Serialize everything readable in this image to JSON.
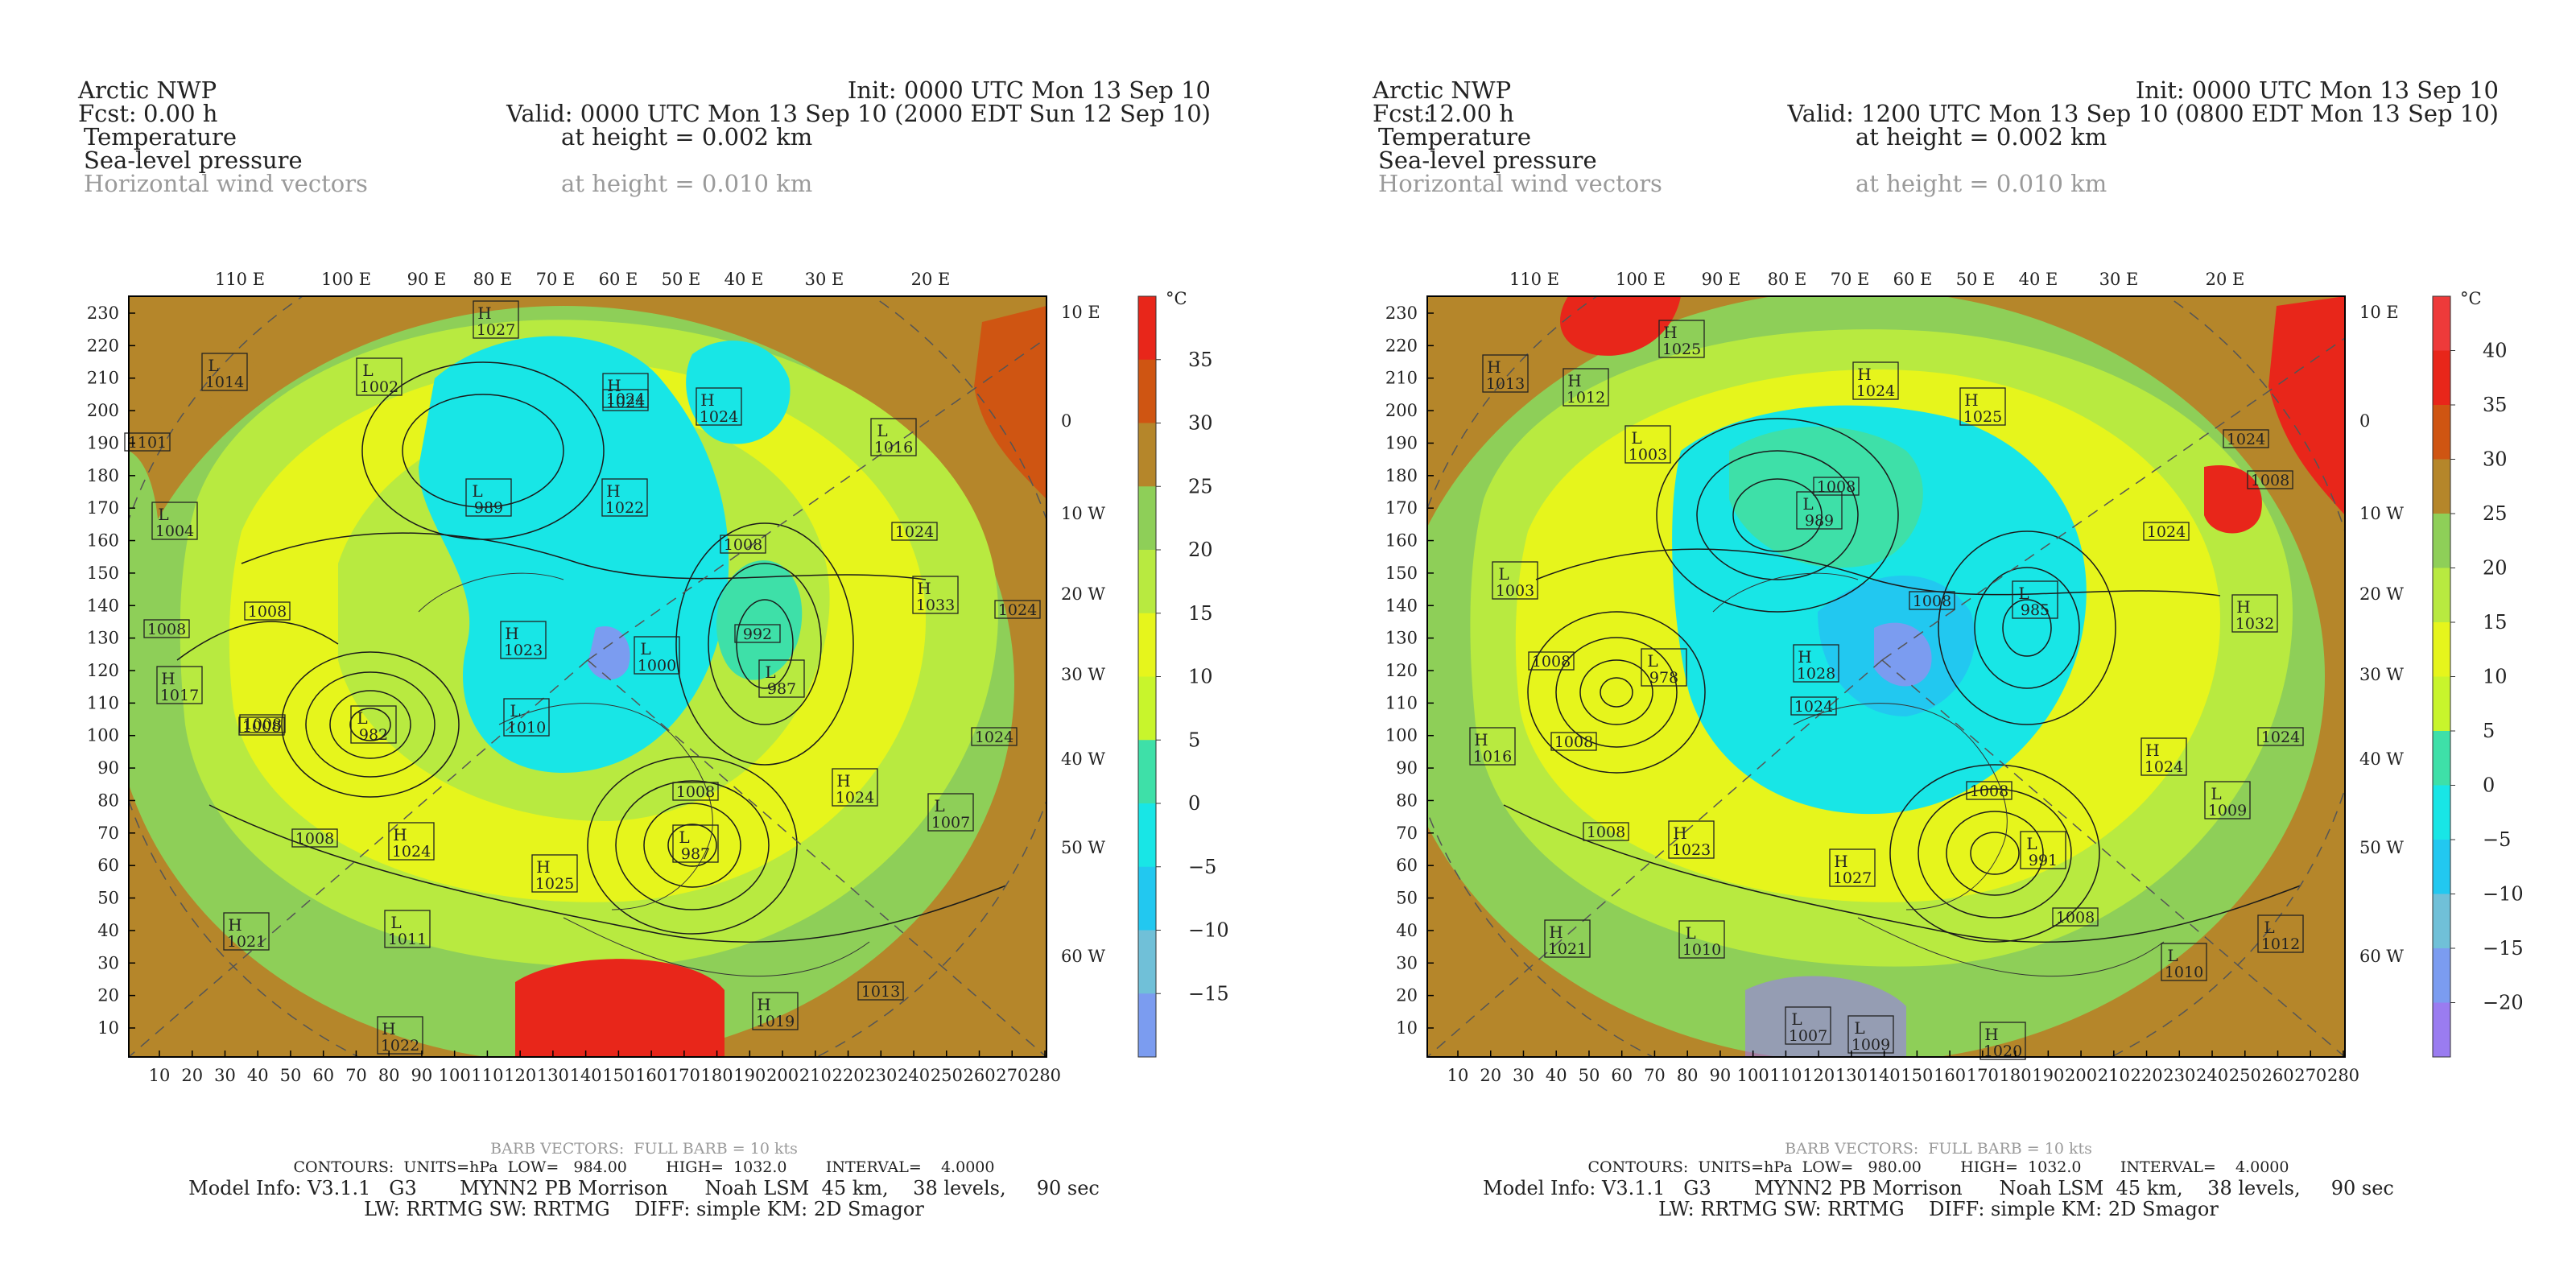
{
  "panels": [
    {
      "title": "Arctic NWP",
      "init": "Init: 0000 UTC Mon 13 Sep 10",
      "fcst_label": "Fcst:",
      "fcst_value": "0.00 h",
      "valid": "Valid: 0000 UTC Mon 13 Sep 10 (2000 EDT Sun 12 Sep 10)",
      "field1": "Temperature",
      "field1_height": "at height = 0.002 km",
      "field2": "Sea-level pressure",
      "field3": "Horizontal wind vectors",
      "field3_height": "at height = 0.010 km",
      "top_labels": [
        "110 E",
        "100 E",
        "90 E",
        "80 E",
        "70 E",
        "60 E",
        "50 E",
        "40 E",
        "30 E",
        "20 E"
      ],
      "right_labels": [
        "10 E",
        "0",
        "10 W",
        "20 W",
        "30 W",
        "40 W",
        "50 W",
        "60 W"
      ],
      "y_ticks": [
        "230",
        "220",
        "210",
        "200",
        "190",
        "180",
        "170",
        "160",
        "150",
        "140",
        "130",
        "120",
        "110",
        "100",
        "90",
        "80",
        "70",
        "60",
        "50",
        "40",
        "30",
        "20",
        "10"
      ],
      "x_ticks": [
        "10",
        "20",
        "30",
        "40",
        "50",
        "60",
        "70",
        "80",
        "90",
        "100",
        "110",
        "120",
        "130",
        "140",
        "150",
        "160",
        "170",
        "180",
        "190",
        "200",
        "210",
        "220",
        "230",
        "240",
        "250",
        "260",
        "270",
        "280"
      ],
      "colorbar_unit": "°C",
      "colorbar_labels": [
        "35",
        "30",
        "25",
        "20",
        "15",
        "10",
        "5",
        "0",
        "−5",
        "−10",
        "−15"
      ],
      "colorbar_colors": [
        "#e8261a",
        "#cf5512",
        "#b5862a",
        "#8ecf58",
        "#b8ea40",
        "#e6f51c",
        "#c8f52c",
        "#3ee0a8",
        "#18e6e6",
        "#22c8f0",
        "#70c0d8",
        "#7b9cf0"
      ],
      "pressure_centers": [
        {
          "t": "L",
          "v": "1014"
        },
        {
          "t": "H",
          "v": "1027"
        },
        {
          "t": "L",
          "v": "1002"
        },
        {
          "t": "",
          "v": "1024"
        },
        {
          "t": "H",
          "v": "1024"
        },
        {
          "t": "H",
          "v": "1024"
        },
        {
          "t": "L",
          "v": "1016"
        },
        {
          "t": "",
          "v": "1101"
        },
        {
          "t": "L",
          "v": "989"
        },
        {
          "t": "H",
          "v": "1022"
        },
        {
          "t": "L",
          "v": "1004"
        },
        {
          "t": "",
          "v": "1008"
        },
        {
          "t": "",
          "v": "1024"
        },
        {
          "t": "",
          "v": "1008"
        },
        {
          "t": "H",
          "v": "1033"
        },
        {
          "t": "",
          "v": "1008"
        },
        {
          "t": "",
          "v": "1024"
        },
        {
          "t": "",
          "v": "1008"
        },
        {
          "t": "H",
          "v": "1023"
        },
        {
          "t": "L",
          "v": "1000"
        },
        {
          "t": "",
          "v": "992"
        },
        {
          "t": "L",
          "v": "987"
        },
        {
          "t": "H",
          "v": "1017"
        },
        {
          "t": "",
          "v": "1008"
        },
        {
          "t": "L",
          "v": "982"
        },
        {
          "t": "L",
          "v": "1010"
        },
        {
          "t": "",
          "v": "1024"
        },
        {
          "t": "",
          "v": "1008"
        },
        {
          "t": "H",
          "v": "1024"
        },
        {
          "t": "",
          "v": "1008"
        },
        {
          "t": "L",
          "v": "1007"
        },
        {
          "t": "H",
          "v": "1024"
        },
        {
          "t": "L",
          "v": "987"
        },
        {
          "t": "H",
          "v": "1025"
        },
        {
          "t": "H",
          "v": "1021"
        },
        {
          "t": "L",
          "v": "1011"
        },
        {
          "t": "",
          "v": "1013"
        },
        {
          "t": "H",
          "v": "1019"
        },
        {
          "t": "H",
          "v": "1022"
        }
      ],
      "footer_barb": "BARB VECTORS:  FULL BARB = 10 kts",
      "footer_contours": "CONTOURS:  UNITS=hPa  LOW=   984.00        HIGH=  1032.0        INTERVAL=    4.0000",
      "footer_model": "Model Info: V3.1.1   G3       MYNN2 PB Morrison      Noah LSM  45 km,    38 levels,     90 sec",
      "footer_phys": "LW: RRTMG SW: RRTMG    DIFF: simple KM: 2D Smagor"
    },
    {
      "title": "Arctic NWP",
      "init": "Init: 0000 UTC Mon 13 Sep 10",
      "fcst_label": "Fcst:",
      "fcst_value": "12.00 h",
      "valid": "Valid: 1200 UTC Mon 13 Sep 10 (0800 EDT Mon 13 Sep 10)",
      "field1": "Temperature",
      "field1_height": "at height = 0.002 km",
      "field2": "Sea-level pressure",
      "field3": "Horizontal wind vectors",
      "field3_height": "at height = 0.010 km",
      "top_labels": [
        "110 E",
        "100 E",
        "90 E",
        "80 E",
        "70 E",
        "60 E",
        "50 E",
        "40 E",
        "30 E",
        "20 E"
      ],
      "right_labels": [
        "10 E",
        "0",
        "10 W",
        "20 W",
        "30 W",
        "40 W",
        "50 W",
        "60 W"
      ],
      "y_ticks": [
        "230",
        "220",
        "210",
        "200",
        "190",
        "180",
        "170",
        "160",
        "150",
        "140",
        "130",
        "120",
        "110",
        "100",
        "90",
        "80",
        "70",
        "60",
        "50",
        "40",
        "30",
        "20",
        "10"
      ],
      "x_ticks": [
        "10",
        "20",
        "30",
        "40",
        "50",
        "60",
        "70",
        "80",
        "90",
        "100",
        "110",
        "120",
        "130",
        "140",
        "150",
        "160",
        "170",
        "180",
        "190",
        "200",
        "210",
        "220",
        "230",
        "240",
        "250",
        "260",
        "270",
        "280"
      ],
      "colorbar_unit": "°C",
      "colorbar_labels": [
        "40",
        "35",
        "30",
        "25",
        "20",
        "15",
        "10",
        "5",
        "0",
        "−5",
        "−10",
        "−15",
        "−20"
      ],
      "colorbar_colors": [
        "#ee3a3a",
        "#e8261a",
        "#cf5512",
        "#b5862a",
        "#8ecf58",
        "#b8ea40",
        "#e6f51c",
        "#c8f52c",
        "#3ee0a8",
        "#18e6e6",
        "#22c8f0",
        "#70c0d8",
        "#7b9cf0",
        "#9a7cf0"
      ],
      "pressure_centers": [
        {
          "t": "H",
          "v": "1013"
        },
        {
          "t": "H",
          "v": "1012"
        },
        {
          "t": "H",
          "v": "1025"
        },
        {
          "t": "H",
          "v": "1024"
        },
        {
          "t": "H",
          "v": "1025"
        },
        {
          "t": "L",
          "v": "1003"
        },
        {
          "t": "",
          "v": "1024"
        },
        {
          "t": "",
          "v": "1008"
        },
        {
          "t": "",
          "v": "1008"
        },
        {
          "t": "L",
          "v": "989"
        },
        {
          "t": "",
          "v": "1024"
        },
        {
          "t": "L",
          "v": "1003"
        },
        {
          "t": "",
          "v": "1008"
        },
        {
          "t": "L",
          "v": "985"
        },
        {
          "t": "H",
          "v": "1032"
        },
        {
          "t": "",
          "v": "1008"
        },
        {
          "t": "L",
          "v": "978"
        },
        {
          "t": "H",
          "v": "1028"
        },
        {
          "t": "",
          "v": "1024"
        },
        {
          "t": "",
          "v": "1024"
        },
        {
          "t": "H",
          "v": "1016"
        },
        {
          "t": "",
          "v": "1008"
        },
        {
          "t": "",
          "v": "1008"
        },
        {
          "t": "H",
          "v": "1024"
        },
        {
          "t": "L",
          "v": "1009"
        },
        {
          "t": "",
          "v": "1008"
        },
        {
          "t": "H",
          "v": "1023"
        },
        {
          "t": "H",
          "v": "1027"
        },
        {
          "t": "L",
          "v": "991"
        },
        {
          "t": "H",
          "v": "1021"
        },
        {
          "t": "L",
          "v": "1010"
        },
        {
          "t": "",
          "v": "1008"
        },
        {
          "t": "L",
          "v": "1010"
        },
        {
          "t": "L",
          "v": "1012"
        },
        {
          "t": "L",
          "v": "1007"
        },
        {
          "t": "L",
          "v": "1009"
        },
        {
          "t": "H",
          "v": "1020"
        }
      ],
      "footer_barb": "BARB VECTORS:  FULL BARB = 10 kts",
      "footer_contours": "CONTOURS:  UNITS=hPa  LOW=   980.00        HIGH=  1032.0        INTERVAL=    4.0000",
      "footer_model": "Model Info: V3.1.1   G3       MYNN2 PB Morrison      Noah LSM  45 km,    38 levels,     90 sec",
      "footer_phys": "LW: RRTMG SW: RRTMG    DIFF: simple KM: 2D Smagor"
    }
  ]
}
